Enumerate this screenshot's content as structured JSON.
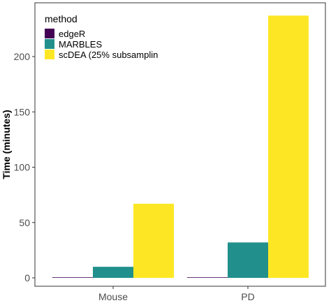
{
  "chart_data": {
    "type": "bar",
    "categories": [
      "Mouse",
      "PD"
    ],
    "series": [
      {
        "name": "edgeR",
        "color": "#440154",
        "values": [
          0.3,
          0.3
        ]
      },
      {
        "name": "MARBLES",
        "color": "#21908C",
        "values": [
          10,
          32
        ]
      },
      {
        "name": "scDEA (25% subsamplin",
        "color": "#FDE725",
        "values": [
          67,
          237
        ]
      }
    ],
    "ylabel": "Time (minutes)",
    "xlabel": "",
    "yticks": [
      0,
      50,
      100,
      150,
      200
    ],
    "ylim": [
      0,
      245
    ],
    "legend_title": "method",
    "legend_position": "top-left",
    "grid": false
  }
}
